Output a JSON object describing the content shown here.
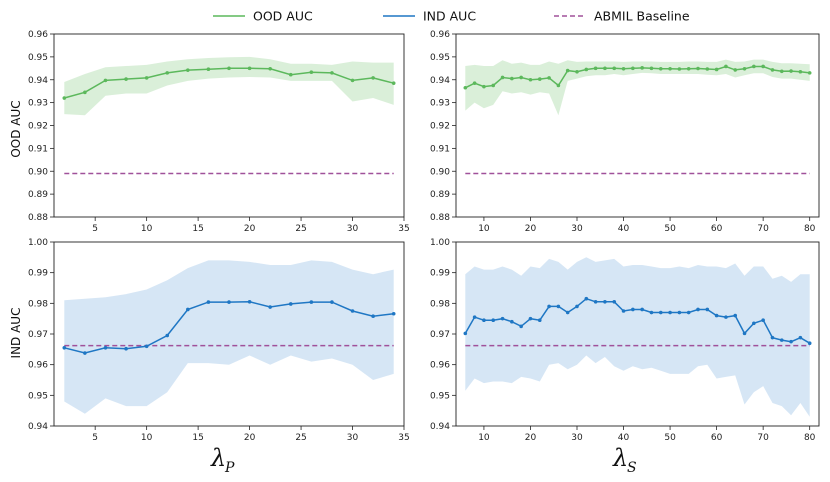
{
  "legend": {
    "ood_label": "OOD AUC",
    "ind_label": "IND AUC",
    "baseline_label": "ABMIL Baseline"
  },
  "colors": {
    "ood": "#5cb85c",
    "ood_fill": "#d4ecd2",
    "ind": "#1f77c4",
    "ind_fill": "#cfe2f3",
    "baseline": "#a0519a"
  },
  "axis_labels": {
    "ood_ylabel": "OOD AUC",
    "ind_ylabel": "IND AUC",
    "left_xlabel_main": "λ",
    "left_xlabel_sub": "P",
    "right_xlabel_main": "λ",
    "right_xlabel_sub": "S"
  },
  "chart_data": [
    {
      "id": "ood_lambda_p",
      "type": "line",
      "metric": "OOD AUC",
      "x": [
        2,
        4,
        6,
        8,
        10,
        12,
        14,
        16,
        18,
        20,
        22,
        24,
        26,
        28,
        30,
        32,
        34
      ],
      "values": [
        0.932,
        0.9345,
        0.9397,
        0.9403,
        0.9408,
        0.943,
        0.9442,
        0.9446,
        0.945,
        0.945,
        0.9448,
        0.9422,
        0.9433,
        0.943,
        0.9397,
        0.9408,
        0.9385
      ],
      "lower": [
        0.925,
        0.9245,
        0.933,
        0.934,
        0.934,
        0.9375,
        0.9395,
        0.9405,
        0.941,
        0.9412,
        0.941,
        0.9395,
        0.9395,
        0.9395,
        0.9305,
        0.932,
        0.929
      ],
      "upper": [
        0.939,
        0.9425,
        0.9455,
        0.946,
        0.9465,
        0.948,
        0.949,
        0.9495,
        0.9498,
        0.95,
        0.949,
        0.947,
        0.947,
        0.9465,
        0.948,
        0.9475,
        0.9475
      ],
      "baseline": 0.899,
      "xlim": [
        1,
        35
      ],
      "ylim": [
        0.88,
        0.96
      ],
      "xticks": [
        5,
        10,
        15,
        20,
        25,
        30,
        35
      ],
      "yticks": [
        "0.88",
        "0.89",
        "0.90",
        "0.91",
        "0.92",
        "0.93",
        "0.94",
        "0.95",
        "0.96"
      ]
    },
    {
      "id": "ood_lambda_s",
      "type": "line",
      "metric": "OOD AUC",
      "x": [
        6,
        8,
        10,
        12,
        14,
        16,
        18,
        20,
        22,
        24,
        26,
        28,
        30,
        32,
        34,
        36,
        38,
        40,
        42,
        44,
        46,
        48,
        50,
        52,
        54,
        56,
        58,
        60,
        62,
        64,
        66,
        68,
        70,
        72,
        74,
        76,
        78,
        80
      ],
      "values": [
        0.9365,
        0.9385,
        0.937,
        0.9375,
        0.941,
        0.9405,
        0.941,
        0.94,
        0.9403,
        0.9408,
        0.9375,
        0.944,
        0.9435,
        0.9445,
        0.945,
        0.945,
        0.945,
        0.9448,
        0.945,
        0.9452,
        0.945,
        0.9448,
        0.9448,
        0.9447,
        0.9448,
        0.9449,
        0.9447,
        0.9445,
        0.9458,
        0.9443,
        0.9448,
        0.9458,
        0.9458,
        0.9443,
        0.9437,
        0.9438,
        0.9435,
        0.943
      ],
      "lower": [
        0.9265,
        0.93,
        0.9275,
        0.929,
        0.935,
        0.934,
        0.9345,
        0.9335,
        0.9345,
        0.934,
        0.9245,
        0.9395,
        0.9405,
        0.9415,
        0.942,
        0.942,
        0.9425,
        0.942,
        0.9425,
        0.943,
        0.9428,
        0.9425,
        0.9425,
        0.9425,
        0.9425,
        0.9425,
        0.9422,
        0.942,
        0.9425,
        0.941,
        0.942,
        0.9428,
        0.9428,
        0.9412,
        0.9405,
        0.9405,
        0.94,
        0.9395
      ],
      "upper": [
        0.946,
        0.9465,
        0.946,
        0.946,
        0.9485,
        0.947,
        0.9475,
        0.9465,
        0.9465,
        0.948,
        0.947,
        0.9485,
        0.9478,
        0.948,
        0.948,
        0.948,
        0.948,
        0.9478,
        0.948,
        0.948,
        0.948,
        0.9478,
        0.9478,
        0.9478,
        0.948,
        0.948,
        0.9478,
        0.9478,
        0.9488,
        0.9478,
        0.948,
        0.9488,
        0.9488,
        0.9478,
        0.9472,
        0.9472,
        0.947,
        0.9468
      ],
      "baseline": 0.899,
      "xlim": [
        4,
        82
      ],
      "ylim": [
        0.88,
        0.96
      ],
      "xticks": [
        10,
        20,
        30,
        40,
        50,
        60,
        70,
        80
      ],
      "yticks": [
        "0.88",
        "0.89",
        "0.90",
        "0.91",
        "0.92",
        "0.93",
        "0.94",
        "0.95",
        "0.96"
      ]
    },
    {
      "id": "ind_lambda_p",
      "type": "line",
      "metric": "IND AUC",
      "x": [
        2,
        4,
        6,
        8,
        10,
        12,
        14,
        16,
        18,
        20,
        22,
        24,
        26,
        28,
        30,
        32,
        34
      ],
      "values": [
        0.9655,
        0.9638,
        0.9655,
        0.9652,
        0.966,
        0.9695,
        0.978,
        0.9804,
        0.9804,
        0.9805,
        0.9788,
        0.9798,
        0.9804,
        0.9804,
        0.9775,
        0.9758,
        0.9766
      ],
      "lower": [
        0.948,
        0.944,
        0.949,
        0.9465,
        0.9465,
        0.951,
        0.9605,
        0.9605,
        0.96,
        0.963,
        0.96,
        0.963,
        0.961,
        0.962,
        0.96,
        0.955,
        0.957
      ],
      "upper": [
        0.981,
        0.9815,
        0.982,
        0.983,
        0.9845,
        0.9875,
        0.9915,
        0.994,
        0.994,
        0.9935,
        0.9925,
        0.9925,
        0.994,
        0.9935,
        0.991,
        0.9895,
        0.991
      ],
      "baseline": 0.9662,
      "xlim": [
        1,
        35
      ],
      "ylim": [
        0.94,
        1.0
      ],
      "xticks": [
        5,
        10,
        15,
        20,
        25,
        30,
        35
      ],
      "yticks": [
        "0.94",
        "0.95",
        "0.96",
        "0.97",
        "0.98",
        "0.99",
        "1.00"
      ]
    },
    {
      "id": "ind_lambda_s",
      "type": "line",
      "metric": "IND AUC",
      "x": [
        6,
        8,
        10,
        12,
        14,
        16,
        18,
        20,
        22,
        24,
        26,
        28,
        30,
        32,
        34,
        36,
        38,
        40,
        42,
        44,
        46,
        48,
        50,
        52,
        54,
        56,
        58,
        60,
        62,
        64,
        66,
        68,
        70,
        72,
        74,
        76,
        78,
        80
      ],
      "values": [
        0.9702,
        0.9755,
        0.9745,
        0.9745,
        0.975,
        0.974,
        0.9725,
        0.975,
        0.9745,
        0.979,
        0.979,
        0.977,
        0.979,
        0.9815,
        0.9805,
        0.9805,
        0.9805,
        0.9775,
        0.978,
        0.978,
        0.977,
        0.977,
        0.977,
        0.977,
        0.977,
        0.978,
        0.978,
        0.976,
        0.9755,
        0.976,
        0.9702,
        0.9735,
        0.9745,
        0.9688,
        0.968,
        0.9675,
        0.9688,
        0.967
      ],
      "lower": [
        0.9515,
        0.9555,
        0.954,
        0.9545,
        0.9545,
        0.954,
        0.956,
        0.9555,
        0.9545,
        0.96,
        0.9605,
        0.9585,
        0.96,
        0.963,
        0.9605,
        0.9625,
        0.9595,
        0.958,
        0.9595,
        0.9585,
        0.959,
        0.958,
        0.957,
        0.957,
        0.957,
        0.9595,
        0.96,
        0.9555,
        0.956,
        0.9565,
        0.947,
        0.951,
        0.953,
        0.9475,
        0.9465,
        0.9435,
        0.9475,
        0.943
      ],
      "upper": [
        0.9895,
        0.992,
        0.991,
        0.991,
        0.992,
        0.991,
        0.989,
        0.992,
        0.9915,
        0.9945,
        0.9935,
        0.991,
        0.9935,
        0.995,
        0.9935,
        0.994,
        0.9945,
        0.992,
        0.9925,
        0.9925,
        0.992,
        0.9915,
        0.9915,
        0.992,
        0.9915,
        0.9925,
        0.992,
        0.992,
        0.9915,
        0.993,
        0.989,
        0.992,
        0.992,
        0.988,
        0.989,
        0.987,
        0.9895,
        0.9895
      ],
      "baseline": 0.9662,
      "xlim": [
        4,
        82
      ],
      "ylim": [
        0.94,
        1.0
      ],
      "xticks": [
        10,
        20,
        30,
        40,
        50,
        60,
        70,
        80
      ],
      "yticks": [
        "0.94",
        "0.95",
        "0.96",
        "0.97",
        "0.98",
        "0.99",
        "1.00"
      ]
    }
  ]
}
